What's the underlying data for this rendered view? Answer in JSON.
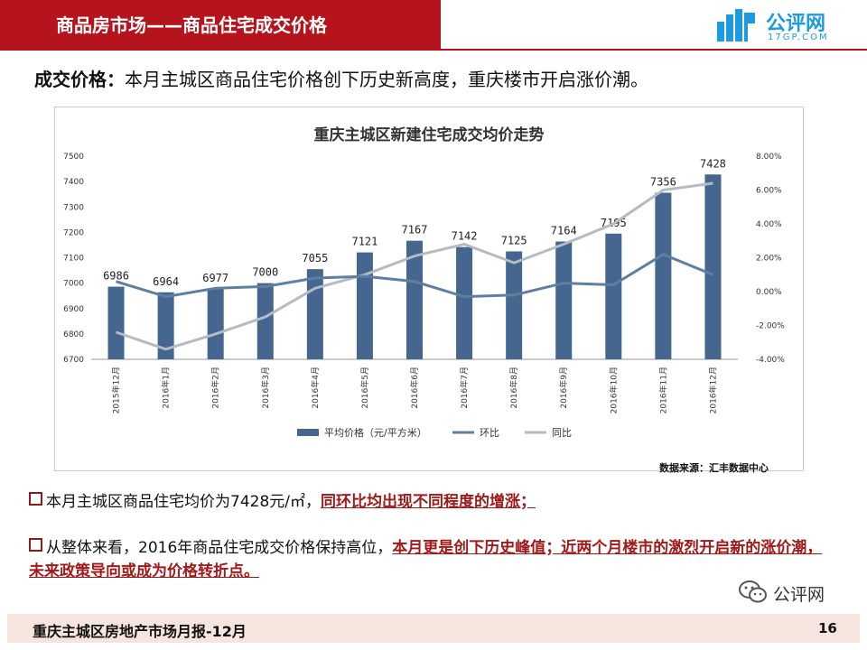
{
  "header": {
    "title": "商品房市场——商品住宅成交价格",
    "logo_name": "公评网",
    "logo_sub": "17GP.COM"
  },
  "headline": {
    "label": "成交价格：",
    "text": "本月主城区商品住宅价格创下历史新高度，重庆楼市开启涨价潮。"
  },
  "chart_data": {
    "type": "bar+line",
    "title": "重庆主城区新建住宅成交均价走势",
    "categories": [
      "2015年12月",
      "2016年1月",
      "2016年2月",
      "2016年3月",
      "2016年4月",
      "2016年5月",
      "2016年6月",
      "2016年7月",
      "2016年8月",
      "2016年9月",
      "2016年10月",
      "2016年11月",
      "2016年12月"
    ],
    "series": [
      {
        "name": "平均价格（元/平方米）",
        "type": "bar",
        "axis": "left",
        "color": "#44668f",
        "values": [
          6986,
          6964,
          6977,
          7000,
          7055,
          7121,
          7167,
          7142,
          7125,
          7164,
          7195,
          7356,
          7428
        ]
      },
      {
        "name": "环比",
        "type": "line",
        "axis": "right",
        "color": "#5f7fa0",
        "values": [
          0.6,
          -0.3,
          0.2,
          0.3,
          0.8,
          0.9,
          0.6,
          -0.3,
          -0.2,
          0.5,
          0.4,
          2.2,
          1.0
        ]
      },
      {
        "name": "同比",
        "type": "line",
        "axis": "right",
        "color": "#b4bbc3",
        "values": [
          -2.4,
          -3.4,
          -2.5,
          -1.5,
          0.2,
          1.0,
          2.1,
          2.8,
          1.7,
          2.8,
          4.0,
          6.0,
          6.4
        ]
      }
    ],
    "left_axis": {
      "min": 6700,
      "max": 7500,
      "step": 100,
      "ticks": [
        "6700",
        "6800",
        "6900",
        "7000",
        "7100",
        "7200",
        "7300",
        "7400",
        "7500"
      ]
    },
    "right_axis": {
      "min": -4,
      "max": 8,
      "step": 2,
      "ticks": [
        "-4.00%",
        "-2.00%",
        "0.00%",
        "2.00%",
        "4.00%",
        "6.00%",
        "8.00%"
      ]
    },
    "legend_position": "bottom",
    "grid": true
  },
  "source": "数据来源：汇丰数据中心",
  "bullets": [
    {
      "normal": "本月主城区商品住宅均价为7428元/㎡，",
      "highlight": "同环比均出现不同程度的增涨；"
    },
    {
      "normal": "从整体来看，2016年商品住宅成交价格保持高位，",
      "highlight": "本月更是创下历史峰值；近两个月楼市的激烈开启新的涨价潮，未来政策导向或成为价格转折点。"
    }
  ],
  "footer": {
    "text": "重庆主城区房地产市场月报-12月",
    "page": "16"
  },
  "watermark": {
    "text": "公评网"
  }
}
